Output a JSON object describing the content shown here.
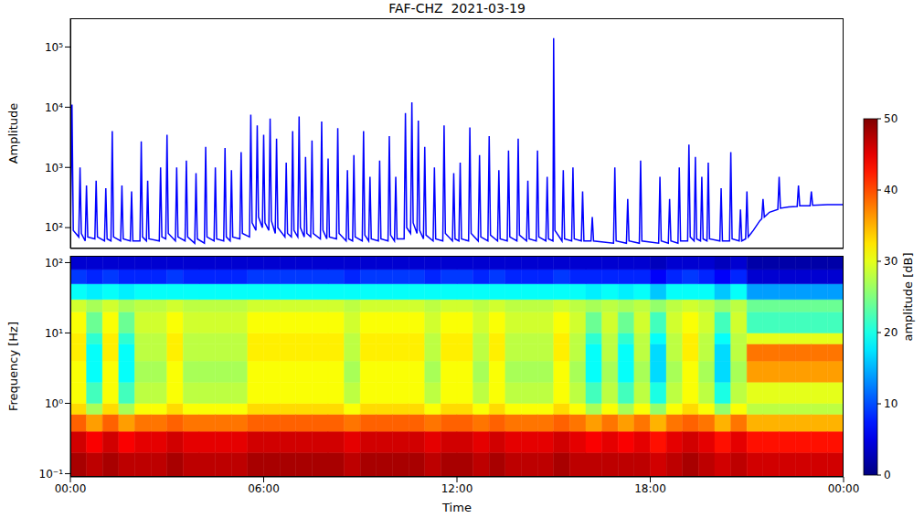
{
  "chart_data": [
    {
      "type": "line",
      "title": "FAF-CHZ  2021-03-19",
      "ylabel": "Amplitude",
      "color": "#0000ff",
      "log": "y",
      "tick_labels": "y",
      "xlim": [
        0,
        24
      ],
      "ylim": [
        45,
        300000
      ],
      "yticks": [
        {
          "value": 100,
          "label": "10²"
        },
        {
          "value": 1000,
          "label": "10³"
        },
        {
          "value": 10000,
          "label": "10⁴"
        },
        {
          "value": 100000,
          "label": "10⁵"
        }
      ],
      "x": [
        0,
        0.05,
        0.09,
        0.26,
        0.3,
        0.34,
        0.46,
        0.5,
        0.54,
        0.76,
        0.8,
        0.84,
        1.06,
        1.1,
        1.14,
        1.26,
        1.3,
        1.34,
        1.56,
        1.6,
        1.64,
        1.86,
        1.9,
        1.94,
        2.16,
        2.2,
        2.24,
        2.36,
        2.4,
        2.44,
        2.76,
        2.8,
        2.84,
        2.96,
        3,
        3.04,
        3.26,
        3.3,
        3.34,
        3.56,
        3.6,
        3.64,
        3.86,
        3.9,
        3.94,
        4.16,
        4.2,
        4.24,
        4.46,
        4.5,
        4.54,
        4.76,
        4.8,
        4.84,
        4.96,
        5,
        5.04,
        5.26,
        5.3,
        5.34,
        5.56,
        5.6,
        5.64,
        5.76,
        5.8,
        5.84,
        5.96,
        6,
        6.04,
        6.16,
        6.2,
        6.24,
        6.36,
        6.4,
        6.44,
        6.66,
        6.7,
        6.74,
        6.86,
        6.9,
        6.94,
        7.06,
        7.1,
        7.14,
        7.26,
        7.3,
        7.34,
        7.46,
        7.5,
        7.54,
        7.76,
        7.8,
        7.84,
        7.96,
        8,
        8.04,
        8.26,
        8.3,
        8.34,
        8.56,
        8.6,
        8.64,
        8.76,
        8.8,
        8.84,
        9.06,
        9.1,
        9.14,
        9.26,
        9.3,
        9.34,
        9.56,
        9.6,
        9.64,
        9.86,
        9.9,
        9.94,
        10.06,
        10.1,
        10.14,
        10.36,
        10.4,
        10.44,
        10.56,
        10.6,
        10.64,
        10.76,
        10.8,
        10.84,
        10.96,
        11,
        11.04,
        11.26,
        11.3,
        11.34,
        11.56,
        11.6,
        11.64,
        11.86,
        11.9,
        11.94,
        12.06,
        12.1,
        12.14,
        12.36,
        12.4,
        12.44,
        12.66,
        12.7,
        12.74,
        12.96,
        13,
        13.04,
        13.26,
        13.3,
        13.34,
        13.56,
        13.6,
        13.64,
        13.86,
        13.9,
        13.94,
        14.16,
        14.2,
        14.24,
        14.46,
        14.5,
        14.54,
        14.76,
        14.8,
        14.84,
        14.98,
        15,
        15.04,
        15.26,
        15.3,
        15.34,
        15.56,
        15.6,
        15.64,
        15.86,
        15.9,
        15.94,
        16.16,
        16.2,
        16.24,
        16.86,
        16.9,
        16.94,
        17.26,
        17.3,
        17.34,
        17.66,
        17.7,
        17.74,
        18.26,
        18.3,
        18.34,
        18.56,
        18.6,
        18.64,
        18.86,
        18.9,
        18.94,
        19.16,
        19.2,
        19.24,
        19.36,
        19.4,
        19.44,
        19.56,
        19.6,
        19.64,
        19.76,
        19.8,
        19.84,
        20.16,
        20.2,
        20.24,
        20.46,
        20.5,
        20.54,
        20.76,
        20.8,
        20.84,
        20.96,
        21,
        21.04,
        21.2,
        21.4,
        21.46,
        21.5,
        21.54,
        21.7,
        21.96,
        22,
        22.04,
        22.3,
        22.56,
        22.6,
        22.64,
        22.96,
        23,
        23.04,
        23.5,
        24
      ],
      "values": [
        70,
        11000,
        90,
        70,
        1000,
        80,
        60,
        500,
        70,
        65,
        600,
        70,
        60,
        450,
        65,
        60,
        4000,
        70,
        60,
        500,
        65,
        60,
        400,
        60,
        60,
        2700,
        70,
        60,
        600,
        65,
        60,
        1000,
        70,
        65,
        3500,
        80,
        60,
        1000,
        70,
        60,
        1300,
        70,
        55,
        800,
        65,
        55,
        2200,
        70,
        60,
        1000,
        65,
        60,
        2100,
        70,
        60,
        900,
        70,
        65,
        1800,
        80,
        70,
        7500,
        120,
        90,
        5000,
        150,
        100,
        3500,
        120,
        90,
        6500,
        130,
        80,
        3000,
        100,
        70,
        1200,
        80,
        70,
        4000,
        90,
        70,
        7000,
        100,
        70,
        1500,
        80,
        70,
        2800,
        80,
        65,
        5800,
        90,
        65,
        1400,
        70,
        65,
        4500,
        80,
        60,
        900,
        65,
        60,
        1600,
        70,
        60,
        4000,
        75,
        60,
        700,
        65,
        60,
        1300,
        65,
        60,
        3300,
        75,
        60,
        700,
        65,
        65,
        8000,
        100,
        80,
        12000,
        120,
        80,
        6000,
        90,
        65,
        2200,
        75,
        60,
        1000,
        65,
        60,
        5000,
        80,
        60,
        800,
        65,
        60,
        1200,
        65,
        60,
        4600,
        80,
        60,
        1600,
        70,
        60,
        3300,
        75,
        60,
        900,
        65,
        60,
        1900,
        70,
        60,
        3000,
        75,
        60,
        600,
        65,
        60,
        1900,
        70,
        60,
        700,
        65,
        60,
        140000,
        90,
        60,
        900,
        65,
        60,
        1000,
        65,
        60,
        400,
        60,
        60,
        150,
        60,
        55,
        1000,
        60,
        55,
        300,
        60,
        55,
        1300,
        60,
        55,
        700,
        60,
        55,
        300,
        60,
        55,
        1000,
        60,
        60,
        2400,
        70,
        60,
        1500,
        65,
        60,
        700,
        65,
        60,
        1200,
        65,
        60,
        450,
        60,
        60,
        1800,
        65,
        60,
        200,
        60,
        65,
        400,
        70,
        90,
        130,
        140,
        300,
        150,
        180,
        200,
        700,
        210,
        220,
        225,
        500,
        230,
        230,
        400,
        235,
        240,
        240
      ]
    },
    {
      "type": "heatmap",
      "xlabel": "Time",
      "ylabel": "Frequency [Hz]",
      "log": "y",
      "xlim": [
        0,
        24
      ],
      "xticks": [
        {
          "value": 0,
          "label": "00:00"
        },
        {
          "value": 6,
          "label": "06:00"
        },
        {
          "value": 12,
          "label": "12:00"
        },
        {
          "value": 18,
          "label": "18:00"
        },
        {
          "value": 24,
          "label": "00:00"
        }
      ],
      "ylim": [
        0.09,
        125
      ],
      "yticks": [
        {
          "value": 0.1,
          "label": "10⁻¹"
        },
        {
          "value": 1,
          "label": "10⁰"
        },
        {
          "value": 10,
          "label": "10¹"
        },
        {
          "value": 100,
          "label": "10²"
        }
      ],
      "x_edges": [
        0,
        0.5,
        1,
        1.5,
        2,
        2.5,
        3,
        3.5,
        4,
        4.5,
        5,
        5.5,
        6,
        6.5,
        7,
        7.5,
        8,
        8.5,
        9,
        9.5,
        10,
        10.5,
        11,
        11.5,
        12,
        12.5,
        13,
        13.5,
        14,
        14.5,
        15,
        15.5,
        16,
        16.5,
        17,
        17.5,
        18,
        18.5,
        19,
        19.5,
        20,
        20.5,
        21,
        21.5,
        22,
        22.5,
        23,
        23.5,
        24
      ],
      "y_edges": [
        0.09,
        0.2,
        0.4,
        0.7,
        1,
        2,
        4,
        7,
        10,
        20,
        30,
        50,
        80,
        125
      ],
      "cells": [
        [
          48,
          46,
          39,
          33,
          31,
          31,
          32,
          32,
          31,
          29,
          19,
          9,
          4
        ],
        [
          47,
          44,
          36,
          27,
          22,
          19,
          19,
          21,
          24,
          27,
          18,
          8,
          4
        ],
        [
          48,
          46,
          39,
          33,
          31,
          31,
          32,
          32,
          31,
          29,
          19,
          9,
          4
        ],
        [
          47,
          44,
          36,
          27,
          22,
          19,
          19,
          21,
          24,
          27,
          18,
          8,
          4
        ],
        [
          47,
          45,
          38,
          31,
          28,
          27,
          28,
          28,
          29,
          28,
          19,
          8,
          4
        ],
        [
          47,
          45,
          38,
          31,
          28,
          27,
          28,
          28,
          29,
          28,
          19,
          8,
          4
        ],
        [
          48,
          46,
          39,
          33,
          31,
          31,
          32,
          32,
          31,
          29,
          19,
          9,
          4
        ],
        [
          47,
          45,
          38,
          31,
          28,
          27,
          28,
          28,
          29,
          28,
          19,
          8,
          4
        ],
        [
          47,
          45,
          38,
          31,
          28,
          27,
          28,
          28,
          29,
          28,
          19,
          8,
          4
        ],
        [
          47,
          45,
          38,
          31,
          28,
          27,
          28,
          28,
          29,
          28,
          19,
          8,
          4
        ],
        [
          47,
          45,
          38,
          31,
          28,
          27,
          28,
          28,
          29,
          28,
          19,
          8,
          4
        ],
        [
          48,
          46,
          39,
          33,
          31,
          31,
          32,
          32,
          31,
          29,
          19,
          9,
          4
        ],
        [
          48,
          46,
          39,
          33,
          31,
          31,
          32,
          32,
          31,
          29,
          19,
          9,
          4
        ],
        [
          48,
          46,
          39,
          33,
          31,
          31,
          32,
          32,
          31,
          29,
          19,
          9,
          4
        ],
        [
          48,
          46,
          39,
          33,
          31,
          31,
          32,
          32,
          31,
          29,
          19,
          9,
          4
        ],
        [
          48,
          46,
          39,
          33,
          31,
          31,
          32,
          32,
          31,
          29,
          19,
          9,
          4
        ],
        [
          48,
          46,
          39,
          33,
          31,
          31,
          32,
          32,
          31,
          29,
          19,
          9,
          4
        ],
        [
          47,
          45,
          38,
          31,
          28,
          27,
          28,
          28,
          29,
          28,
          19,
          8,
          4
        ],
        [
          48,
          46,
          39,
          33,
          31,
          31,
          32,
          32,
          31,
          29,
          19,
          9,
          4
        ],
        [
          48,
          46,
          39,
          33,
          31,
          31,
          32,
          32,
          31,
          29,
          19,
          9,
          4
        ],
        [
          48,
          46,
          39,
          33,
          31,
          31,
          32,
          32,
          31,
          29,
          19,
          9,
          4
        ],
        [
          48,
          46,
          39,
          33,
          31,
          31,
          32,
          32,
          31,
          29,
          19,
          9,
          4
        ],
        [
          47,
          45,
          38,
          31,
          28,
          27,
          28,
          28,
          29,
          28,
          19,
          8,
          4
        ],
        [
          48,
          46,
          39,
          33,
          31,
          31,
          32,
          32,
          31,
          29,
          19,
          9,
          4
        ],
        [
          48,
          46,
          39,
          33,
          31,
          31,
          32,
          32,
          31,
          29,
          19,
          9,
          4
        ],
        [
          47,
          45,
          38,
          31,
          28,
          27,
          28,
          28,
          29,
          28,
          19,
          8,
          4
        ],
        [
          48,
          46,
          39,
          33,
          31,
          31,
          32,
          32,
          31,
          29,
          19,
          9,
          4
        ],
        [
          47,
          45,
          38,
          31,
          28,
          27,
          28,
          28,
          29,
          28,
          19,
          8,
          4
        ],
        [
          47,
          45,
          38,
          31,
          28,
          27,
          28,
          28,
          29,
          28,
          19,
          8,
          4
        ],
        [
          47,
          45,
          38,
          31,
          28,
          27,
          28,
          28,
          29,
          28,
          19,
          8,
          4
        ],
        [
          48,
          46,
          39,
          33,
          31,
          31,
          32,
          32,
          31,
          29,
          19,
          9,
          4
        ],
        [
          47,
          45,
          38,
          31,
          28,
          27,
          28,
          28,
          29,
          28,
          19,
          8,
          4
        ],
        [
          47,
          44,
          36,
          27,
          22,
          19,
          19,
          21,
          24,
          27,
          18,
          8,
          4
        ],
        [
          47,
          45,
          38,
          31,
          28,
          27,
          28,
          28,
          29,
          28,
          19,
          8,
          4
        ],
        [
          47,
          44,
          36,
          27,
          22,
          19,
          19,
          21,
          24,
          27,
          18,
          8,
          4
        ],
        [
          47,
          45,
          38,
          31,
          28,
          27,
          28,
          28,
          29,
          28,
          19,
          8,
          4
        ],
        [
          46,
          43,
          35,
          26,
          20,
          17,
          17,
          19,
          22,
          26,
          16,
          6,
          3
        ],
        [
          47,
          45,
          38,
          31,
          28,
          27,
          28,
          28,
          29,
          28,
          19,
          8,
          4
        ],
        [
          48,
          46,
          39,
          33,
          31,
          31,
          32,
          32,
          31,
          29,
          19,
          9,
          4
        ],
        [
          47,
          45,
          38,
          31,
          28,
          27,
          28,
          28,
          29,
          28,
          19,
          8,
          4
        ],
        [
          46,
          43,
          35,
          26,
          20,
          17,
          17,
          19,
          22,
          26,
          16,
          6,
          3
        ],
        [
          47,
          45,
          38,
          31,
          28,
          27,
          28,
          28,
          29,
          28,
          19,
          8,
          4
        ],
        [
          46,
          43,
          35,
          28,
          30,
          36,
          38,
          30,
          22,
          24,
          14,
          4,
          2
        ],
        [
          46,
          43,
          35,
          28,
          30,
          36,
          38,
          30,
          22,
          24,
          14,
          4,
          2
        ],
        [
          46,
          43,
          35,
          28,
          30,
          36,
          38,
          30,
          22,
          24,
          14,
          4,
          2
        ],
        [
          46,
          43,
          35,
          28,
          30,
          36,
          38,
          30,
          22,
          24,
          14,
          4,
          2
        ],
        [
          46,
          43,
          35,
          28,
          30,
          36,
          38,
          30,
          22,
          24,
          14,
          4,
          2
        ],
        [
          46,
          43,
          35,
          28,
          30,
          36,
          38,
          30,
          22,
          24,
          14,
          4,
          2
        ]
      ],
      "colorbar": {
        "label": "amplitude [dB]",
        "lim": [
          0,
          50
        ],
        "ticks": [
          0,
          10,
          20,
          30,
          40,
          50
        ]
      }
    }
  ]
}
